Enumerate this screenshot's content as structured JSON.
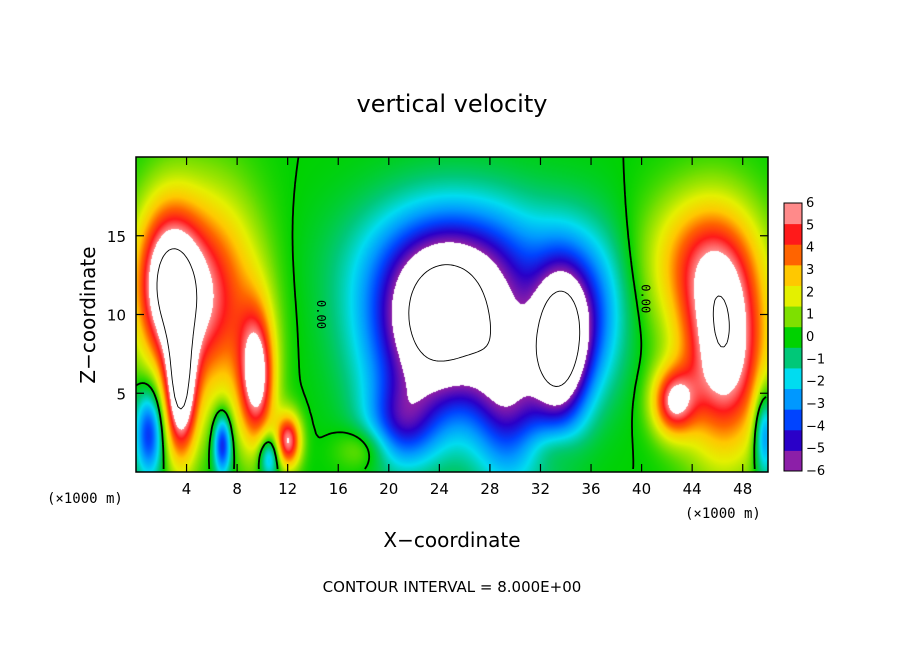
{
  "chart_data": {
    "type": "heatmap",
    "title": "vertical velocity",
    "xlabel": "X−coordinate",
    "ylabel": "Z−coordinate",
    "x_unit_label": "(×1000 m)",
    "y_unit_label": "(×1000 m)",
    "xlim": [
      0,
      50
    ],
    "ylim": [
      0,
      20
    ],
    "x_ticks": [
      4,
      8,
      12,
      16,
      20,
      24,
      28,
      32,
      36,
      40,
      44,
      48
    ],
    "y_ticks": [
      5,
      10,
      15
    ],
    "x_tick_labels": [
      "4",
      "8",
      "12",
      "16",
      "20",
      "24",
      "28",
      "32",
      "36",
      "40",
      "44",
      "48"
    ],
    "y_tick_labels": [
      "5",
      "10",
      "15"
    ],
    "colorbar": {
      "min": -6,
      "max": 6,
      "ticks": [
        6,
        5,
        4,
        3,
        2,
        1,
        0,
        -1,
        -2,
        -3,
        -4,
        -5,
        -6
      ],
      "tick_labels": [
        "6",
        "5",
        "4",
        "3",
        "2",
        "1",
        "0",
        "−1",
        "−2",
        "−3",
        "−4",
        "−5",
        "−6"
      ],
      "colors": [
        "#8c1fa8",
        "#2a00c8",
        "#0044ff",
        "#0098ff",
        "#00dcf0",
        "#00c878",
        "#00d200",
        "#7ee000",
        "#e4f000",
        "#ffc800",
        "#ff6400",
        "#ff1a1a",
        "#ff8a8a"
      ]
    },
    "contour_labels": [
      "0.00",
      "0.00"
    ],
    "footer": "CONTOUR INTERVAL = 8.000E+00",
    "features": [
      {
        "x": 2.5,
        "z": 12.0,
        "sx": 1.8,
        "sz": 3.5,
        "w": 7.5
      },
      {
        "x": 6.0,
        "z": 11.0,
        "sx": 2.6,
        "sz": 4.5,
        "w": 5.0
      },
      {
        "x": 9.5,
        "z": 6.0,
        "sx": 1.0,
        "sz": 3.0,
        "w": 6.5
      },
      {
        "x": 3.5,
        "z": 5.0,
        "sx": 0.9,
        "sz": 3.0,
        "w": 7.0
      },
      {
        "x": 12.0,
        "z": 2.0,
        "sx": 0.7,
        "sz": 1.2,
        "w": 6.0
      },
      {
        "x": 1.0,
        "z": 2.5,
        "sx": 0.8,
        "sz": 2.0,
        "w": -4.5
      },
      {
        "x": 6.8,
        "z": 1.8,
        "sx": 0.5,
        "sz": 1.4,
        "w": -5.0
      },
      {
        "x": 10.5,
        "z": 1.0,
        "sx": 0.6,
        "sz": 1.0,
        "w": -3.5
      },
      {
        "x": 24.0,
        "z": 9.0,
        "sx": 3.8,
        "sz": 3.8,
        "w": -8.5
      },
      {
        "x": 26.0,
        "z": 13.5,
        "sx": 5.5,
        "sz": 3.0,
        "w": -3.5
      },
      {
        "x": 29.5,
        "z": 5.0,
        "sx": 2.0,
        "sz": 4.0,
        "w": -4.5
      },
      {
        "x": 33.5,
        "z": 8.0,
        "sx": 1.6,
        "sz": 3.5,
        "w": -8.5
      },
      {
        "x": 21.0,
        "z": 3.0,
        "sx": 2.0,
        "sz": 2.0,
        "w": -3.5
      },
      {
        "x": 36.0,
        "z": 10.0,
        "sx": 2.0,
        "sz": 3.5,
        "w": -3.0
      },
      {
        "x": 46.5,
        "z": 8.0,
        "sx": 2.3,
        "sz": 4.5,
        "w": 7.5
      },
      {
        "x": 44.5,
        "z": 13.5,
        "sx": 3.0,
        "sz": 3.0,
        "w": 3.5
      },
      {
        "x": 42.5,
        "z": 4.5,
        "sx": 1.2,
        "sz": 1.5,
        "w": 5.5
      },
      {
        "x": 49.7,
        "z": 2.5,
        "sx": 0.6,
        "sz": 2.0,
        "w": -4.0
      },
      {
        "x": 18.0,
        "z": 1.5,
        "sx": 1.5,
        "sz": 1.0,
        "w": 1.5
      },
      {
        "x": 33.0,
        "z": 1.5,
        "sx": 1.5,
        "sz": 1.0,
        "w": 1.0
      }
    ]
  }
}
